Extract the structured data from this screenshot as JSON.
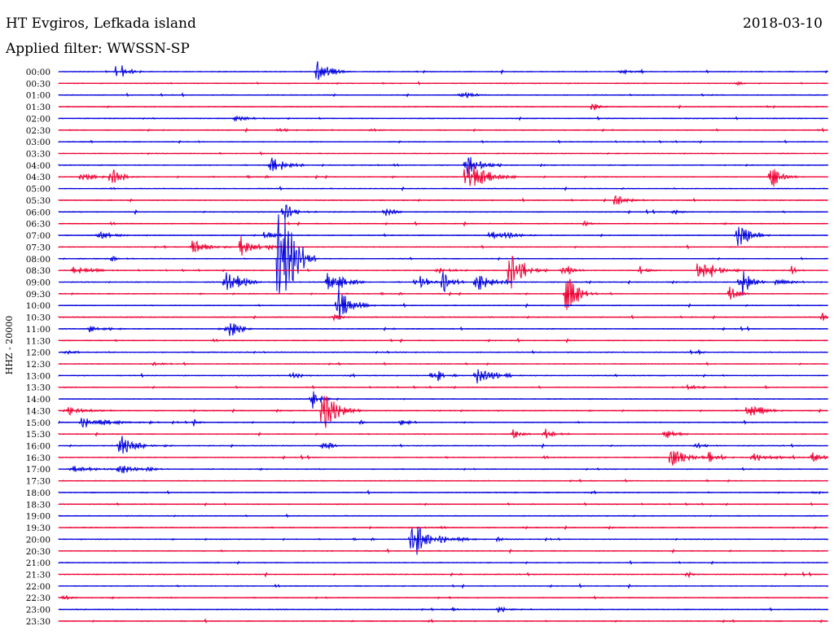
{
  "header": {
    "station": "HT Evgiros, Lefkada island",
    "date": "2018-03-10",
    "filter": "Applied filter: WWSSN-SP"
  },
  "chart_data": {
    "type": "line",
    "title": "HT Evgiros, Lefkada island",
    "ylabel": "HHZ - 20000",
    "colors": [
      "#0000dd",
      "#ee0033"
    ],
    "rows": [
      "00:00",
      "00:30",
      "01:00",
      "01:30",
      "02:00",
      "02:30",
      "03:00",
      "03:30",
      "04:00",
      "04:30",
      "05:00",
      "05:30",
      "06:00",
      "06:30",
      "07:00",
      "07:30",
      "08:00",
      "08:30",
      "09:00",
      "09:30",
      "10:00",
      "10:30",
      "11:00",
      "11:30",
      "12:00",
      "12:30",
      "13:00",
      "13:30",
      "14:00",
      "14:30",
      "15:00",
      "15:30",
      "16:00",
      "16:30",
      "17:00",
      "17:30",
      "18:00",
      "18:30",
      "19:00",
      "19:30",
      "20:00",
      "20:30",
      "21:00",
      "21:30",
      "22:00",
      "22:30",
      "23:00",
      "23:30"
    ],
    "x_unit": "minutes into row (0-30)",
    "amp_unit": "relative trace amplitude (1.0 = one row spacing)",
    "events": [
      {
        "row": 0,
        "x": 2.3,
        "amp": 1.0,
        "dur": 1.0
      },
      {
        "row": 0,
        "x": 10.1,
        "amp": 1.0,
        "dur": 1.5
      },
      {
        "row": 0,
        "x": 22.0,
        "amp": 0.3,
        "dur": 1.2
      },
      {
        "row": 1,
        "x": 26.5,
        "amp": 0.15,
        "dur": 1.0
      },
      {
        "row": 2,
        "x": 15.7,
        "amp": 0.4,
        "dur": 1.5
      },
      {
        "row": 3,
        "x": 20.8,
        "amp": 0.4,
        "dur": 1.0
      },
      {
        "row": 4,
        "x": 6.9,
        "amp": 0.3,
        "dur": 1.5
      },
      {
        "row": 5,
        "x": 8.6,
        "amp": 0.2,
        "dur": 1.0
      },
      {
        "row": 5,
        "x": 12.2,
        "amp": 0.25,
        "dur": 0.5
      },
      {
        "row": 8,
        "x": 8.3,
        "amp": 1.0,
        "dur": 1.5
      },
      {
        "row": 8,
        "x": 15.9,
        "amp": 1.0,
        "dur": 1.5
      },
      {
        "row": 9,
        "x": 0.9,
        "amp": 0.4,
        "dur": 1.5
      },
      {
        "row": 9,
        "x": 2.0,
        "amp": 1.0,
        "dur": 1.2
      },
      {
        "row": 9,
        "x": 15.9,
        "amp": 1.6,
        "dur": 2.0
      },
      {
        "row": 9,
        "x": 27.8,
        "amp": 1.2,
        "dur": 1.0
      },
      {
        "row": 11,
        "x": 21.7,
        "amp": 0.5,
        "dur": 1.5
      },
      {
        "row": 12,
        "x": 8.8,
        "amp": 1.0,
        "dur": 1.0
      },
      {
        "row": 12,
        "x": 12.8,
        "amp": 0.4,
        "dur": 1.0
      },
      {
        "row": 12,
        "x": 24.0,
        "amp": 0.4,
        "dur": 0.5
      },
      {
        "row": 13,
        "x": 20.5,
        "amp": 0.3,
        "dur": 0.5
      },
      {
        "row": 14,
        "x": 1.6,
        "amp": 0.3,
        "dur": 2.0
      },
      {
        "row": 14,
        "x": 8.0,
        "amp": 0.3,
        "dur": 2.0
      },
      {
        "row": 14,
        "x": 16.8,
        "amp": 0.6,
        "dur": 2.5
      },
      {
        "row": 14,
        "x": 26.5,
        "amp": 1.1,
        "dur": 1.5
      },
      {
        "row": 15,
        "x": 5.2,
        "amp": 0.8,
        "dur": 1.5
      },
      {
        "row": 15,
        "x": 7.1,
        "amp": 1.2,
        "dur": 1.0
      },
      {
        "row": 15,
        "x": 8.1,
        "amp": 0.3,
        "dur": 1.0
      },
      {
        "row": 16,
        "x": 2.1,
        "amp": 0.3,
        "dur": 1.0
      },
      {
        "row": 16,
        "x": 8.6,
        "amp": 6.5,
        "dur": 1.5
      },
      {
        "row": 17,
        "x": 0.6,
        "amp": 0.4,
        "dur": 2.0
      },
      {
        "row": 17,
        "x": 14.7,
        "amp": 0.4,
        "dur": 1.5
      },
      {
        "row": 17,
        "x": 17.6,
        "amp": 2.0,
        "dur": 1.5
      },
      {
        "row": 17,
        "x": 19.7,
        "amp": 0.6,
        "dur": 1.0
      },
      {
        "row": 17,
        "x": 22.7,
        "amp": 0.4,
        "dur": 1.0
      },
      {
        "row": 17,
        "x": 25.0,
        "amp": 1.5,
        "dur": 1.5
      },
      {
        "row": 17,
        "x": 28.6,
        "amp": 0.4,
        "dur": 0.5
      },
      {
        "row": 18,
        "x": 6.5,
        "amp": 1.5,
        "dur": 1.5
      },
      {
        "row": 18,
        "x": 10.5,
        "amp": 1.6,
        "dur": 1.5
      },
      {
        "row": 18,
        "x": 13.9,
        "amp": 0.3,
        "dur": 1.0
      },
      {
        "row": 18,
        "x": 14.1,
        "amp": 0.8,
        "dur": 1.0
      },
      {
        "row": 18,
        "x": 15.0,
        "amp": 1.0,
        "dur": 1.0
      },
      {
        "row": 18,
        "x": 16.3,
        "amp": 0.9,
        "dur": 1.5
      },
      {
        "row": 18,
        "x": 26.6,
        "amp": 1.6,
        "dur": 1.0
      },
      {
        "row": 18,
        "x": 28.0,
        "amp": 0.4,
        "dur": 1.5
      },
      {
        "row": 19,
        "x": 19.8,
        "amp": 2.0,
        "dur": 1.2
      },
      {
        "row": 19,
        "x": 26.2,
        "amp": 0.8,
        "dur": 1.0
      },
      {
        "row": 20,
        "x": 10.9,
        "amp": 1.8,
        "dur": 1.5
      },
      {
        "row": 21,
        "x": 10.7,
        "amp": 0.3,
        "dur": 1.0
      },
      {
        "row": 21,
        "x": 29.8,
        "amp": 0.4,
        "dur": 0.5
      },
      {
        "row": 22,
        "x": 1.2,
        "amp": 0.3,
        "dur": 2.0
      },
      {
        "row": 22,
        "x": 6.3,
        "amp": 0.3,
        "dur": 1.5
      },
      {
        "row": 22,
        "x": 6.7,
        "amp": 0.9,
        "dur": 1.0
      },
      {
        "row": 24,
        "x": 0.4,
        "amp": 0.3,
        "dur": 1.0
      },
      {
        "row": 24,
        "x": 24.7,
        "amp": 0.4,
        "dur": 1.0
      },
      {
        "row": 25,
        "x": 3.7,
        "amp": 0.2,
        "dur": 1.0
      },
      {
        "row": 26,
        "x": 9.1,
        "amp": 0.3,
        "dur": 1.0
      },
      {
        "row": 26,
        "x": 14.6,
        "amp": 1.0,
        "dur": 1.0
      },
      {
        "row": 26,
        "x": 16.3,
        "amp": 0.9,
        "dur": 2.0
      },
      {
        "row": 27,
        "x": 24.4,
        "amp": 0.3,
        "dur": 1.5
      },
      {
        "row": 28,
        "x": 9.9,
        "amp": 1.0,
        "dur": 1.0
      },
      {
        "row": 29,
        "x": 0.4,
        "amp": 0.4,
        "dur": 2.0
      },
      {
        "row": 29,
        "x": 10.3,
        "amp": 2.0,
        "dur": 1.5
      },
      {
        "row": 29,
        "x": 26.9,
        "amp": 0.8,
        "dur": 1.5
      },
      {
        "row": 30,
        "x": 0.9,
        "amp": 0.6,
        "dur": 3.0
      },
      {
        "row": 30,
        "x": 5.3,
        "amp": 0.3,
        "dur": 0.5
      },
      {
        "row": 30,
        "x": 11.7,
        "amp": 0.3,
        "dur": 0.5
      },
      {
        "row": 30,
        "x": 13.3,
        "amp": 0.3,
        "dur": 1.5
      },
      {
        "row": 31,
        "x": 17.7,
        "amp": 0.5,
        "dur": 1.0
      },
      {
        "row": 31,
        "x": 19.0,
        "amp": 0.5,
        "dur": 1.0
      },
      {
        "row": 31,
        "x": 23.7,
        "amp": 0.6,
        "dur": 1.0
      },
      {
        "row": 32,
        "x": 2.4,
        "amp": 1.0,
        "dur": 2.0
      },
      {
        "row": 32,
        "x": 24.9,
        "amp": 0.3,
        "dur": 1.0
      },
      {
        "row": 32,
        "x": 10.3,
        "amp": 0.8,
        "dur": 0.8
      },
      {
        "row": 33,
        "x": 23.9,
        "amp": 1.1,
        "dur": 1.5
      },
      {
        "row": 33,
        "x": 25.4,
        "amp": 0.7,
        "dur": 1.0
      },
      {
        "row": 33,
        "x": 27.1,
        "amp": 0.4,
        "dur": 2.5
      },
      {
        "row": 33,
        "x": 29.4,
        "amp": 0.5,
        "dur": 1.0
      },
      {
        "row": 34,
        "x": 0.5,
        "amp": 0.4,
        "dur": 2.0
      },
      {
        "row": 34,
        "x": 2.4,
        "amp": 0.9,
        "dur": 1.0
      },
      {
        "row": 34,
        "x": 3.5,
        "amp": 0.3,
        "dur": 1.0
      },
      {
        "row": 36,
        "x": 3.2,
        "amp": 0.2,
        "dur": 1.0
      },
      {
        "row": 36,
        "x": 29.5,
        "amp": 0.2,
        "dur": 1.0
      },
      {
        "row": 40,
        "x": 13.8,
        "amp": 1.6,
        "dur": 2.5
      },
      {
        "row": 40,
        "x": 17.1,
        "amp": 0.3,
        "dur": 0.5
      },
      {
        "row": 43,
        "x": 24.5,
        "amp": 0.5,
        "dur": 0.3
      },
      {
        "row": 45,
        "x": 0.2,
        "amp": 0.3,
        "dur": 1.0
      },
      {
        "row": 46,
        "x": 15.4,
        "amp": 0.3,
        "dur": 0.5
      },
      {
        "row": 46,
        "x": 17.1,
        "amp": 0.3,
        "dur": 1.5
      }
    ]
  }
}
